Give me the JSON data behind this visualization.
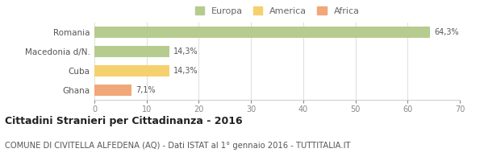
{
  "categories": [
    "Romania",
    "Macedonia d/N.",
    "Cuba",
    "Ghana"
  ],
  "values": [
    64.3,
    14.3,
    14.3,
    7.1
  ],
  "labels": [
    "64,3%",
    "14,3%",
    "14,3%",
    "7,1%"
  ],
  "colors": [
    "#b5cc8e",
    "#b5cc8e",
    "#f5d06e",
    "#f0a878"
  ],
  "legend": [
    {
      "label": "Europa",
      "color": "#b5cc8e"
    },
    {
      "label": "America",
      "color": "#f5d06e"
    },
    {
      "label": "Africa",
      "color": "#f0a878"
    }
  ],
  "xlim": [
    0,
    70
  ],
  "xticks": [
    0,
    10,
    20,
    30,
    40,
    50,
    60,
    70
  ],
  "title": "Cittadini Stranieri per Cittadinanza - 2016",
  "subtitle": "COMUNE DI CIVITELLA ALFEDENA (AQ) - Dati ISTAT al 1° gennaio 2016 - TUTTITALIA.IT",
  "title_fontsize": 9,
  "subtitle_fontsize": 7.2,
  "background_color": "#ffffff",
  "grid_color": "#dddddd",
  "bar_height": 0.55
}
